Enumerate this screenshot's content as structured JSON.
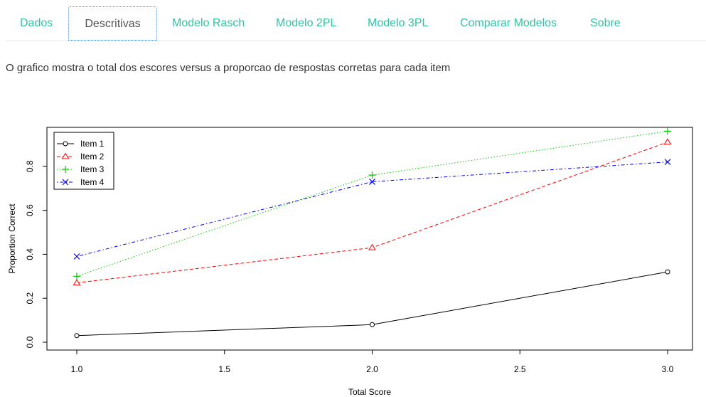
{
  "tabs": [
    {
      "label": "Dados",
      "active": false
    },
    {
      "label": "Descritivas",
      "active": true
    },
    {
      "label": "Modelo Rasch",
      "active": false
    },
    {
      "label": "Modelo 2PL",
      "active": false
    },
    {
      "label": "Modelo 3PL",
      "active": false
    },
    {
      "label": "Comparar Modelos",
      "active": false
    },
    {
      "label": "Sobre",
      "active": false
    }
  ],
  "description": "O grafico mostra o total dos escores versus a proporcao de respostas corretas para cada item",
  "colors": {
    "tab_accent": "#2ec4a0",
    "active_tab_border": "#4a86c8",
    "text": "#333333"
  },
  "chart_data": {
    "type": "line",
    "title": "",
    "xlabel": "Total Score",
    "ylabel": "Proportion Correct",
    "x": [
      1.0,
      2.0,
      3.0
    ],
    "xlim": [
      1.0,
      3.0
    ],
    "ylim": [
      0.0,
      0.95
    ],
    "x_ticks": [
      "1.0",
      "1.5",
      "2.0",
      "2.5",
      "3.0"
    ],
    "y_ticks": [
      "0.0",
      "0.2",
      "0.4",
      "0.6",
      "0.8"
    ],
    "legend_position": "top-left",
    "grid": false,
    "series": [
      {
        "name": "Item 1",
        "values": [
          0.03,
          0.08,
          0.32
        ],
        "color": "#000000",
        "marker": "circle",
        "dash": "solid"
      },
      {
        "name": "Item 2",
        "values": [
          0.27,
          0.43,
          0.91
        ],
        "color": "#ff0000",
        "marker": "triangle",
        "dash": "dashed"
      },
      {
        "name": "Item 3",
        "values": [
          0.3,
          0.76,
          0.96
        ],
        "color": "#00cc00",
        "marker": "plus",
        "dash": "dotted"
      },
      {
        "name": "Item 4",
        "values": [
          0.39,
          0.73,
          0.82
        ],
        "color": "#0000ff",
        "marker": "cross",
        "dash": "dotdash"
      }
    ]
  }
}
